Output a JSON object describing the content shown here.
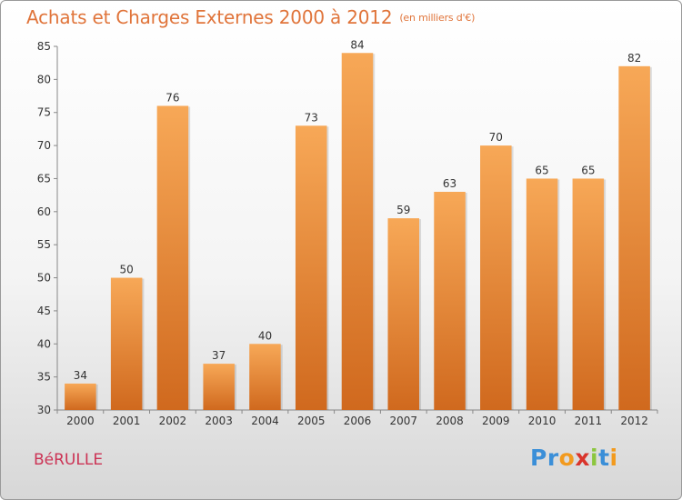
{
  "chart_data": {
    "type": "bar",
    "title": "Achats et Charges Externes 2000 à 2012",
    "subtitle": "(en milliers d'€)",
    "categories": [
      "2000",
      "2001",
      "2002",
      "2003",
      "2004",
      "2005",
      "2006",
      "2007",
      "2008",
      "2009",
      "2010",
      "2011",
      "2012"
    ],
    "values": [
      34,
      50,
      76,
      37,
      40,
      73,
      84,
      59,
      63,
      70,
      65,
      65,
      82
    ],
    "ylim": [
      30,
      85
    ],
    "yticks": [
      30,
      35,
      40,
      45,
      50,
      55,
      60,
      65,
      70,
      75,
      80,
      85
    ],
    "grid": false,
    "bar_color_top": "#f7a857",
    "bar_color_bottom": "#d0691e"
  },
  "footer": {
    "commune": "BéRULLE",
    "logo_letters": [
      {
        "char": "P",
        "color": "#3b8fd8"
      },
      {
        "char": "r",
        "color": "#3b8fd8"
      },
      {
        "char": "o",
        "color": "#f29a1e"
      },
      {
        "char": "x",
        "color": "#d9342b"
      },
      {
        "char": "i",
        "color": "#8cc63f"
      },
      {
        "char": "t",
        "color": "#3b8fd8"
      },
      {
        "char": "i",
        "color": "#f29a1e"
      }
    ]
  }
}
